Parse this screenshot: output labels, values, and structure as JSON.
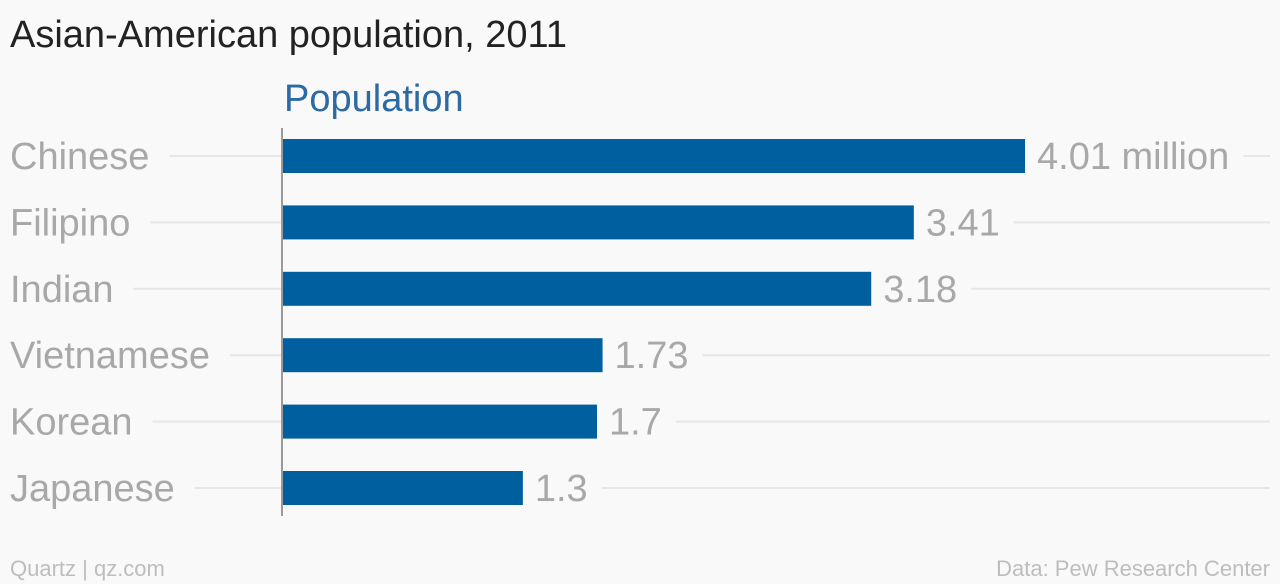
{
  "chart_data": {
    "type": "bar",
    "orientation": "horizontal",
    "title": "Asian-American population, 2011",
    "categories": [
      "Chinese",
      "Filipino",
      "Indian",
      "Vietnamese",
      "Korean",
      "Japanese"
    ],
    "series": [
      {
        "name": "Population",
        "values": [
          4.01,
          3.41,
          3.18,
          1.73,
          1.7,
          1.3
        ],
        "labels": [
          "4.01 million",
          "3.41",
          "3.18",
          "1.73",
          "1.7",
          "1.3"
        ]
      }
    ],
    "xlim": [
      0,
      4.01
    ],
    "grid": true,
    "legend": "top-left",
    "colors": {
      "bar": "#00609f",
      "grid": "#e6e6e6",
      "axis": "#9a9a9a"
    }
  },
  "footer": {
    "source_left": "Quartz | qz.com",
    "source_right": "Data: Pew Research Center"
  }
}
